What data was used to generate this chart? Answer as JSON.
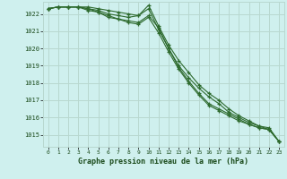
{
  "title": "Graphe pression niveau de la mer (hPa)",
  "background_color": "#cff0ee",
  "grid_color": "#b8d8d0",
  "line_color": "#2d6a2d",
  "x_labels": [
    "0",
    "1",
    "2",
    "3",
    "4",
    "5",
    "6",
    "7",
    "8",
    "9",
    "10",
    "11",
    "12",
    "13",
    "14",
    "15",
    "16",
    "17",
    "18",
    "19",
    "20",
    "21",
    "22",
    "23"
  ],
  "ylim": [
    1014.3,
    1022.7
  ],
  "yticks": [
    1015,
    1016,
    1017,
    1018,
    1019,
    1020,
    1021,
    1022
  ],
  "series": [
    [
      1022.3,
      1022.4,
      1022.4,
      1022.4,
      1022.3,
      1022.2,
      1022.0,
      1021.9,
      1021.8,
      1021.9,
      1022.5,
      1021.3,
      1020.2,
      1019.3,
      1018.6,
      1017.9,
      1017.4,
      1017.0,
      1016.5,
      1016.1,
      1015.8,
      1015.5,
      1015.4,
      1014.6
    ],
    [
      1022.3,
      1022.4,
      1022.4,
      1022.4,
      1022.2,
      1022.1,
      1021.8,
      1021.7,
      1021.6,
      1021.5,
      1021.9,
      1021.2,
      1020.0,
      1018.9,
      1018.1,
      1017.4,
      1016.8,
      1016.5,
      1016.2,
      1015.9,
      1015.6,
      1015.4,
      1015.3,
      1014.6
    ],
    [
      1022.3,
      1022.4,
      1022.4,
      1022.4,
      1022.3,
      1022.1,
      1021.9,
      1021.7,
      1021.5,
      1021.4,
      1021.8,
      1020.9,
      1019.8,
      1018.8,
      1018.0,
      1017.3,
      1016.7,
      1016.4,
      1016.1,
      1015.8,
      1015.6,
      1015.4,
      1015.3,
      1014.6
    ],
    [
      1022.3,
      1022.4,
      1022.4,
      1022.4,
      1022.4,
      1022.3,
      1022.2,
      1022.1,
      1022.0,
      1021.9,
      1022.3,
      1021.1,
      1020.0,
      1019.0,
      1018.3,
      1017.7,
      1017.2,
      1016.8,
      1016.3,
      1016.0,
      1015.7,
      1015.5,
      1015.3,
      1014.6
    ]
  ]
}
